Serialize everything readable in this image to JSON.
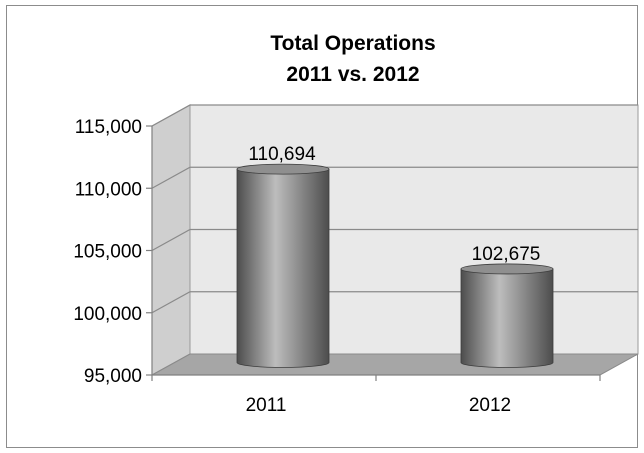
{
  "chart_data": {
    "type": "bar",
    "bar_shape": "3d-cylinder",
    "title_lines": [
      "Total Operations",
      "2011 vs. 2012"
    ],
    "categories": [
      "2011",
      "2012"
    ],
    "values": [
      110694,
      102675
    ],
    "data_labels": [
      "110,694",
      "102,675"
    ],
    "ylim": [
      95000,
      115000
    ],
    "y_ticks": [
      95000,
      100000,
      105000,
      110000,
      115000
    ],
    "y_tick_labels": [
      "95,000",
      "100,000",
      "105,000",
      "110,000",
      "115,000"
    ],
    "grid": true,
    "legend": "none",
    "colors": {
      "wall": "#e9e9e9",
      "floor": "#a6a6a6",
      "gridline": "#8a8a8a",
      "bar_dark": "#4d4d4d",
      "bar_light": "#bdbdbd",
      "bar_top": "#8f8f8f"
    }
  }
}
